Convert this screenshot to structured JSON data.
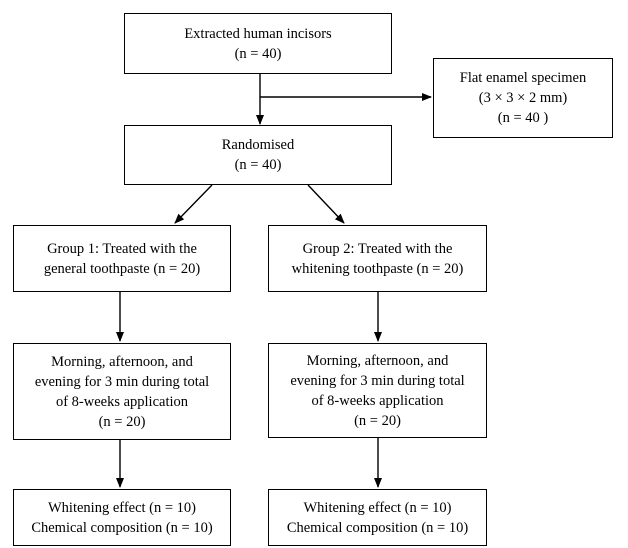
{
  "nodes": {
    "extracted": {
      "lines": [
        "Extracted human incisors",
        "(n = 40)"
      ]
    },
    "flat": {
      "lines": [
        "Flat enamel specimen",
        "(3 × 3 × 2 mm)",
        "(n = 40  )"
      ]
    },
    "randomised": {
      "lines": [
        "Randomised",
        "(n = 40)"
      ]
    },
    "group1": {
      "lines": [
        "Group 1: Treated with the",
        "general toothpaste (n =  20)"
      ]
    },
    "group2": {
      "lines": [
        "Group 2: Treated with the",
        "whitening toothpaste (n =  20)"
      ]
    },
    "protocol1": {
      "lines": [
        "Morning, afternoon, and",
        "evening for 3 min during total",
        "of 8-weeks application",
        "(n =  20)"
      ]
    },
    "protocol2": {
      "lines": [
        "Morning, afternoon, and",
        "evening for 3 min during total",
        "of 8-weeks application",
        "(n =  20)"
      ]
    },
    "outcome1": {
      "lines": [
        "Whitening effect (n =  10)",
        "Chemical composition (n =  10)"
      ]
    },
    "outcome2": {
      "lines": [
        "Whitening effect (n =  10)",
        "Chemical composition (n =  10)"
      ]
    }
  },
  "colors": {
    "stroke": "#000000",
    "background": "#ffffff"
  }
}
